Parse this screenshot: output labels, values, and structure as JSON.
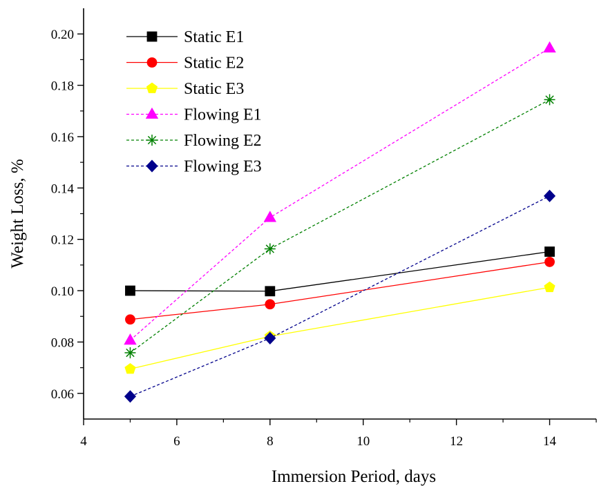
{
  "chart_data": {
    "type": "line",
    "xlabel": "Immersion Period, days",
    "ylabel": "Weight Loss, %",
    "xlim": [
      4,
      15
    ],
    "ylim": [
      0.05,
      0.21
    ],
    "x_ticks": [
      "4",
      "6",
      "8",
      "10",
      "12",
      "14"
    ],
    "y_ticks": [
      "0.06",
      "0.08",
      "0.10",
      "0.12",
      "0.14",
      "0.16",
      "0.18",
      "0.20"
    ],
    "legend_position": "top-left",
    "grid": false,
    "x": [
      5,
      8,
      14
    ],
    "series": [
      {
        "name": "Static E1",
        "values": [
          0.1,
          0.0998,
          0.1152
        ],
        "color": "#000000",
        "marker": "square",
        "dash": "solid"
      },
      {
        "name": "Static E2",
        "values": [
          0.0888,
          0.0947,
          0.1112
        ],
        "color": "#ff0000",
        "marker": "circle",
        "dash": "solid"
      },
      {
        "name": "Static E3",
        "values": [
          0.0695,
          0.0822,
          0.1013
        ],
        "color": "#ffff00",
        "marker": "pentagon",
        "dash": "solid"
      },
      {
        "name": "Flowing E1",
        "values": [
          0.0807,
          0.1285,
          0.1945
        ],
        "color": "#ff00ff",
        "marker": "triangle",
        "dash": "dashed"
      },
      {
        "name": "Flowing E2",
        "values": [
          0.0758,
          0.1163,
          0.1744
        ],
        "color": "#008000",
        "marker": "star",
        "dash": "dashed"
      },
      {
        "name": "Flowing E3",
        "values": [
          0.0588,
          0.0815,
          0.1369
        ],
        "color": "#00008b",
        "marker": "diamond",
        "dash": "dashed"
      }
    ]
  }
}
